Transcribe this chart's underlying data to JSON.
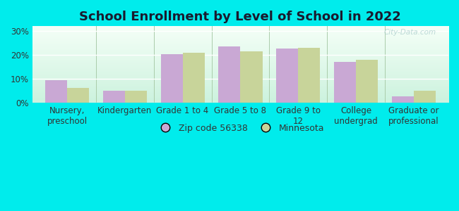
{
  "title": "School Enrollment by Level of School in 2022",
  "categories": [
    "Nursery,\npreschool",
    "Kindergarten",
    "Grade 1 to 4",
    "Grade 5 to 8",
    "Grade 9 to\n12",
    "College\nundergrad",
    "Graduate or\nprofessional"
  ],
  "zip_values": [
    9.5,
    4.8,
    20.3,
    23.5,
    22.7,
    17.0,
    2.5
  ],
  "mn_values": [
    6.0,
    4.9,
    21.0,
    21.4,
    23.0,
    18.0,
    5.0
  ],
  "zip_color": "#c9a8d4",
  "mn_color": "#c8d49a",
  "background_color": "#00ecec",
  "plot_bg_top": "#cceedd",
  "plot_bg_bottom": "#f5fff8",
  "ylim": [
    0,
    32
  ],
  "yticks": [
    0,
    10,
    20,
    30
  ],
  "ytick_labels": [
    "0%",
    "10%",
    "20%",
    "30%"
  ],
  "legend_zip_label": "Zip code 56338",
  "legend_mn_label": "Minnesota",
  "bar_width": 0.38,
  "title_fontsize": 13,
  "tick_fontsize": 8.5,
  "legend_fontsize": 9,
  "watermark_text": "City-Data.com",
  "grid_color": "#ddeecc",
  "separator_color": "#aaccaa"
}
